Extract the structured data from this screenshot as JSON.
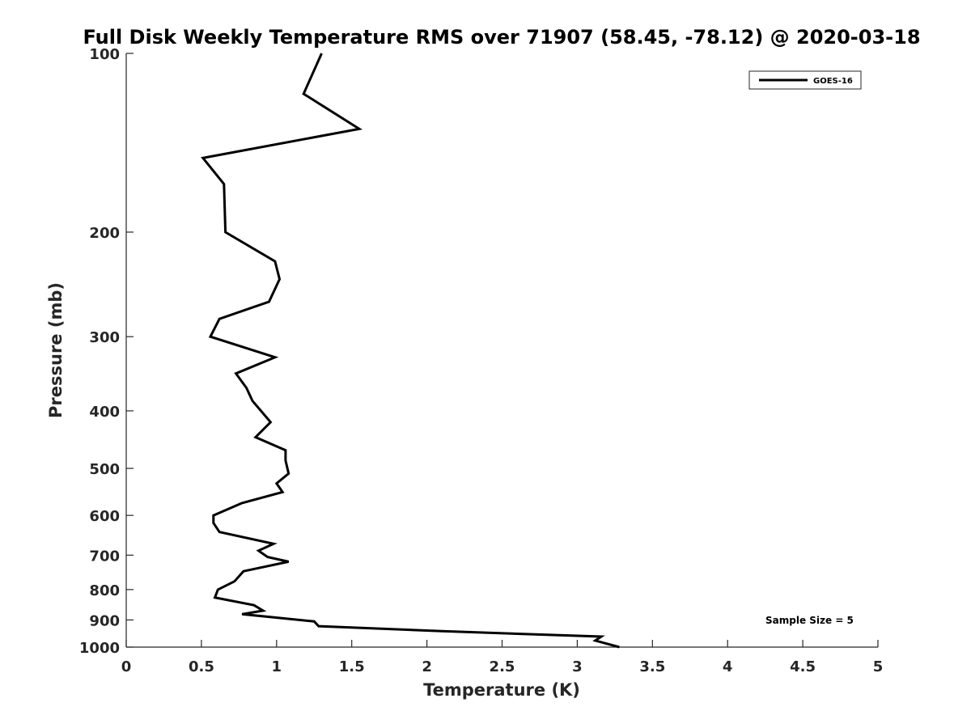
{
  "chart_data": {
    "type": "line",
    "title": "Full Disk Weekly Temperature RMS over 71907 (58.45, -78.12) @ 2020-03-18",
    "xlabel": "Temperature (K)",
    "ylabel": "Pressure (mb)",
    "xlim": [
      0,
      5
    ],
    "ylim": [
      100,
      1000
    ],
    "yscale": "log",
    "y_reversed": true,
    "grid": false,
    "legend_position": "top-right",
    "x_ticks": [
      "0",
      "0.5",
      "1",
      "1.5",
      "2",
      "2.5",
      "3",
      "3.5",
      "4",
      "4.5",
      "5"
    ],
    "y_ticks": [
      "100",
      "200",
      "300",
      "400",
      "500",
      "600",
      "700",
      "800",
      "900",
      "1000"
    ],
    "series": [
      {
        "name": "GOES-16",
        "color": "#000000",
        "points": [
          [
            1.3,
            100
          ],
          [
            1.18,
            117
          ],
          [
            1.55,
            134
          ],
          [
            0.51,
            150
          ],
          [
            0.65,
            166
          ],
          [
            0.66,
            200
          ],
          [
            0.99,
            224
          ],
          [
            1.02,
            240
          ],
          [
            0.95,
            262
          ],
          [
            0.62,
            280
          ],
          [
            0.56,
            300
          ],
          [
            0.99,
            325
          ],
          [
            0.73,
            346
          ],
          [
            0.8,
            366
          ],
          [
            0.84,
            385
          ],
          [
            0.96,
            418
          ],
          [
            0.86,
            443
          ],
          [
            1.06,
            466
          ],
          [
            1.06,
            485
          ],
          [
            1.08,
            510
          ],
          [
            1.0,
            530
          ],
          [
            1.04,
            548
          ],
          [
            0.77,
            572
          ],
          [
            0.58,
            600
          ],
          [
            0.58,
            618
          ],
          [
            0.62,
            640
          ],
          [
            0.98,
            670
          ],
          [
            0.88,
            688
          ],
          [
            0.94,
            705
          ],
          [
            1.08,
            718
          ],
          [
            0.78,
            745
          ],
          [
            0.72,
            775
          ],
          [
            0.61,
            800
          ],
          [
            0.59,
            825
          ],
          [
            0.85,
            850
          ],
          [
            0.91,
            868
          ],
          [
            0.77,
            880
          ],
          [
            1.25,
            905
          ],
          [
            1.28,
            922
          ],
          [
            2.1,
            940
          ],
          [
            3.16,
            960
          ],
          [
            3.12,
            975
          ],
          [
            3.28,
            1000
          ]
        ]
      }
    ],
    "annotations": [
      "Sample Size = 5"
    ]
  }
}
